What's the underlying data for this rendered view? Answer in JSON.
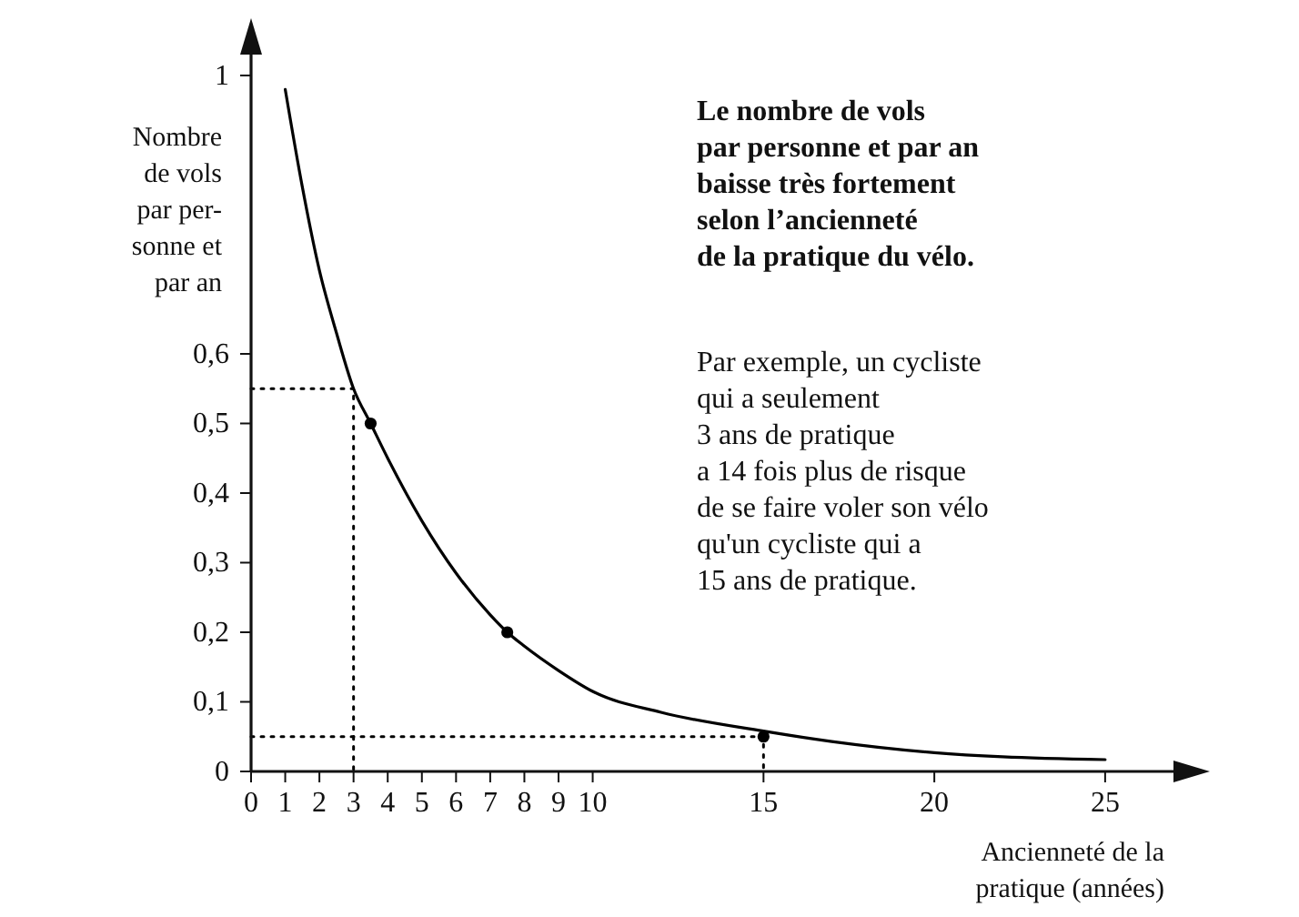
{
  "chart_data": {
    "type": "line",
    "title": "Le nombre de vols\npar personne et par an\nbaisse très fortement\nselon l’ancienneté\nde la pratique du vélo.",
    "ylabel": "Nombre\nde vols\npar per-\nsonne et\npar an",
    "xlabel": "Ancienneté de la\npratique (années)",
    "annotations": [
      "Par exemple, un cycliste\nqui a seulement\n3 ans de pratique\na 14 fois plus de risque\nde se faire voler son vélo\nqu'un cycliste qui a\n15 ans de pratique."
    ],
    "series": [
      {
        "color": "#000000",
        "marker": "none",
        "line_style": "solid",
        "x": [
          1,
          1.5,
          2,
          2.5,
          3,
          3.5,
          4,
          5,
          6,
          7,
          7.5,
          8,
          9,
          10,
          12,
          15,
          17,
          20,
          22,
          25
        ],
        "values": [
          0.98,
          0.84,
          0.72,
          0.63,
          0.55,
          0.5,
          0.45,
          0.36,
          0.285,
          0.225,
          0.2,
          0.18,
          0.145,
          0.115,
          0.085,
          0.058,
          0.043,
          0.027,
          0.021,
          0.017
        ]
      },
      {
        "type": "scatter",
        "color": "#000000",
        "marker": "circle",
        "x": [
          3.5,
          7.5,
          15
        ],
        "values": [
          0.5,
          0.2,
          0.05
        ]
      },
      {
        "type": "line",
        "color": "#000000",
        "marker": "none",
        "line_style": "dotted",
        "x": [
          0,
          3,
          3
        ],
        "values": [
          0.55,
          0.55,
          0
        ]
      },
      {
        "type": "line",
        "color": "#000000",
        "marker": "none",
        "line_style": "dotted",
        "x": [
          0,
          15,
          15
        ],
        "values": [
          0.05,
          0.05,
          0
        ]
      }
    ],
    "xlim": [
      0,
      27
    ],
    "ylim": [
      0,
      1.03
    ],
    "xticks": [
      0,
      1,
      2,
      3,
      4,
      5,
      6,
      7,
      8,
      9,
      10,
      15,
      20,
      25
    ],
    "yticks": [
      0,
      {
        "value": 0.1,
        "label": "0,1"
      },
      {
        "value": 0.2,
        "label": "0,2"
      },
      {
        "value": 0.3,
        "label": "0,3"
      },
      {
        "value": 0.4,
        "label": "0,4"
      },
      {
        "value": 0.5,
        "label": "0,5"
      },
      {
        "value": 0.6,
        "label": "0,6"
      },
      1
    ],
    "grid": false
  }
}
